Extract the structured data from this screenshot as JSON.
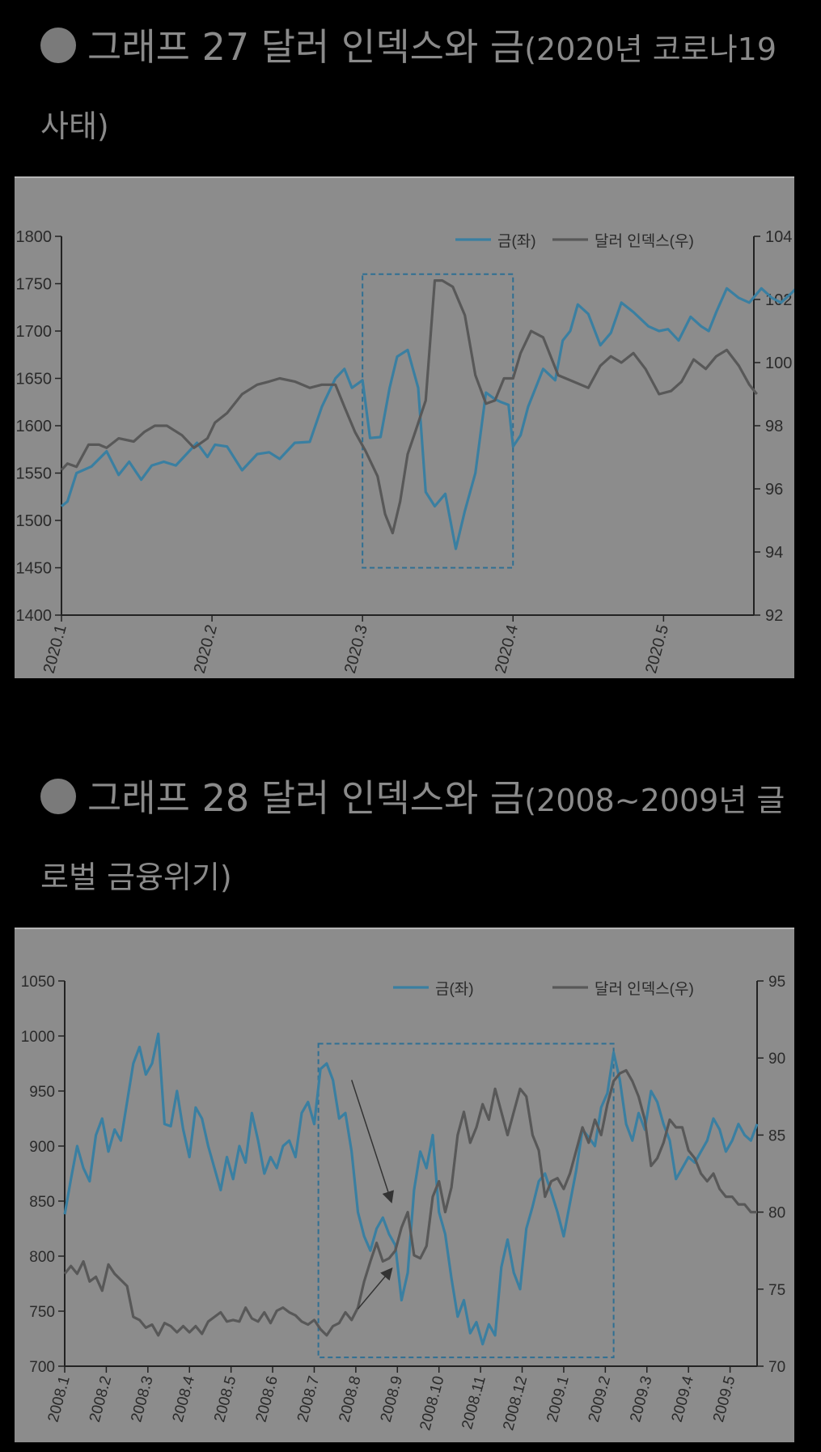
{
  "charts": [
    {
      "title_main": "그래프 27 달러 인덱스와 금",
      "title_sub": "(2020년 코로나19 사태)",
      "chart_data": {
        "type": "line",
        "categories": [
          "2020.1",
          "2020.2",
          "2020.3",
          "2020.4",
          "2020.5"
        ],
        "left_axis": {
          "ticks": [
            1400,
            1450,
            1500,
            1550,
            1600,
            1650,
            1700,
            1750,
            1800
          ],
          "ylim": [
            1400,
            1800
          ]
        },
        "right_axis": {
          "ticks": [
            92,
            94,
            96,
            98,
            100,
            102,
            104
          ],
          "ylim": [
            92,
            104
          ]
        },
        "legend": {
          "placement": "top-right"
        },
        "highlight_box": {
          "x": [
            2.0,
            3.0
          ],
          "y_left": [
            1450,
            1760
          ]
        },
        "series": [
          {
            "name": "금(좌)",
            "axis": "left",
            "color": "#3a7fa1",
            "x": [
              0,
              0.04,
              0.1,
              0.2,
              0.3,
              0.38,
              0.45,
              0.53,
              0.6,
              0.68,
              0.76,
              0.83,
              0.9,
              0.97,
              1.02,
              1.1,
              1.2,
              1.3,
              1.38,
              1.45,
              1.55,
              1.65,
              1.73,
              1.82,
              1.88,
              1.93,
              2.0,
              2.05,
              2.12,
              2.18,
              2.23,
              2.3,
              2.37,
              2.42,
              2.48,
              2.55,
              2.62,
              2.68,
              2.75,
              2.82,
              2.88,
              2.92,
              2.97,
              3.0,
              3.05,
              3.1,
              3.2,
              3.28,
              3.33,
              3.38,
              3.43,
              3.5,
              3.58,
              3.65,
              3.72,
              3.8,
              3.9,
              3.97,
              4.03,
              4.1,
              4.18,
              4.25,
              4.3,
              4.35,
              4.42,
              4.5,
              4.57,
              4.65,
              4.72,
              4.78,
              4.85,
              4.88
            ],
            "values": [
              1515,
              1520,
              1550,
              1557,
              1573,
              1548,
              1562,
              1543,
              1558,
              1562,
              1558,
              1570,
              1582,
              1567,
              1580,
              1578,
              1553,
              1570,
              1572,
              1565,
              1582,
              1583,
              1620,
              1650,
              1660,
              1640,
              1648,
              1587,
              1588,
              1640,
              1673,
              1680,
              1640,
              1530,
              1515,
              1528,
              1470,
              1510,
              1550,
              1635,
              1628,
              1625,
              1622,
              1578,
              1590,
              1620,
              1660,
              1648,
              1690,
              1700,
              1728,
              1718,
              1685,
              1698,
              1730,
              1720,
              1705,
              1700,
              1702,
              1690,
              1715,
              1705,
              1700,
              1720,
              1745,
              1735,
              1730,
              1745,
              1735,
              1730,
              1740,
              1745
            ]
          },
          {
            "name": "달러 인덱스(우)",
            "axis": "right",
            "color": "#585858",
            "x": [
              0,
              0.04,
              0.1,
              0.18,
              0.25,
              0.3,
              0.38,
              0.48,
              0.55,
              0.62,
              0.7,
              0.8,
              0.88,
              0.97,
              1.02,
              1.1,
              1.2,
              1.3,
              1.38,
              1.45,
              1.55,
              1.65,
              1.73,
              1.82,
              1.88,
              1.95,
              2.02,
              2.1,
              2.15,
              2.2,
              2.25,
              2.3,
              2.35,
              2.42,
              2.48,
              2.53,
              2.6,
              2.68,
              2.75,
              2.82,
              2.88,
              2.94,
              3.0,
              3.05,
              3.12,
              3.2,
              3.3,
              3.4,
              3.5,
              3.58,
              3.65,
              3.72,
              3.8,
              3.88,
              3.97,
              4.05,
              4.12,
              4.2,
              4.28,
              4.35,
              4.42,
              4.5,
              4.57,
              4.62
            ],
            "values": [
              96.6,
              96.8,
              96.7,
              97.4,
              97.4,
              97.3,
              97.6,
              97.5,
              97.8,
              98.0,
              98.0,
              97.7,
              97.3,
              97.6,
              98.1,
              98.4,
              99.0,
              99.3,
              99.4,
              99.5,
              99.4,
              99.2,
              99.3,
              99.3,
              98.6,
              97.8,
              97.2,
              96.4,
              95.2,
              94.6,
              95.6,
              97.1,
              97.8,
              98.8,
              102.6,
              102.6,
              102.4,
              101.5,
              99.6,
              98.7,
              98.8,
              99.5,
              99.5,
              100.3,
              101.0,
              100.8,
              99.6,
              99.4,
              99.2,
              99.9,
              100.2,
              100.0,
              100.3,
              99.8,
              99.0,
              99.1,
              99.4,
              100.1,
              99.8,
              100.2,
              100.4,
              99.9,
              99.3,
              99.0
            ]
          }
        ]
      }
    },
    {
      "title_main": "그래프 28 달러 인덱스와 금",
      "title_sub": "(2008~2009년 글로벌 금융위기)",
      "chart_data": {
        "type": "line",
        "categories": [
          "2008.1",
          "2008.2",
          "2008.3",
          "2008.4",
          "2008.5",
          "2008.6",
          "2008.7",
          "2008.8",
          "2008.9",
          "2008.10",
          "2008.11",
          "2008.12",
          "2009.1",
          "2009.2",
          "2009.3",
          "2009.4",
          "2009.5"
        ],
        "left_axis": {
          "ticks": [
            700,
            750,
            800,
            850,
            900,
            950,
            1000,
            1050
          ],
          "ylim": [
            700,
            1050
          ]
        },
        "right_axis": {
          "ticks": [
            70,
            75,
            80,
            85,
            90,
            95
          ],
          "ylim": [
            70,
            95
          ]
        },
        "legend": {
          "placement": "top-right"
        },
        "highlight_box": {
          "x": [
            6.1,
            13.2
          ],
          "y_left": [
            708,
            993
          ]
        },
        "series": [
          {
            "name": "금(좌)",
            "axis": "left",
            "color": "#3a7fa1",
            "x": [
              0,
              0.15,
              0.3,
              0.45,
              0.6,
              0.75,
              0.9,
              1.05,
              1.2,
              1.35,
              1.5,
              1.65,
              1.8,
              1.95,
              2.1,
              2.25,
              2.4,
              2.55,
              2.7,
              2.85,
              3.0,
              3.15,
              3.3,
              3.45,
              3.6,
              3.75,
              3.9,
              4.05,
              4.2,
              4.35,
              4.5,
              4.65,
              4.8,
              4.95,
              5.1,
              5.25,
              5.4,
              5.55,
              5.7,
              5.85,
              6.0,
              6.15,
              6.3,
              6.45,
              6.6,
              6.75,
              6.9,
              7.05,
              7.2,
              7.35,
              7.5,
              7.65,
              7.8,
              7.95,
              8.1,
              8.25,
              8.4,
              8.55,
              8.7,
              8.85,
              9.0,
              9.15,
              9.3,
              9.45,
              9.6,
              9.75,
              9.9,
              10.05,
              10.2,
              10.35,
              10.5,
              10.65,
              10.8,
              10.95,
              11.1,
              11.25,
              11.4,
              11.55,
              11.7,
              11.85,
              12.0,
              12.15,
              12.3,
              12.45,
              12.6,
              12.75,
              12.9,
              13.05,
              13.2,
              13.35,
              13.5,
              13.65,
              13.8,
              13.95,
              14.1,
              14.25,
              14.4,
              14.55,
              14.7,
              14.85,
              15.0,
              15.15,
              15.3,
              15.45,
              15.6,
              15.75,
              15.9,
              16.05,
              16.2,
              16.35,
              16.5,
              16.65
            ],
            "values": [
              838,
              870,
              900,
              880,
              868,
              910,
              925,
              895,
              915,
              905,
              940,
              975,
              990,
              965,
              975,
              1002,
              920,
              918,
              950,
              915,
              890,
              935,
              925,
              900,
              880,
              860,
              890,
              870,
              900,
              885,
              930,
              905,
              875,
              890,
              880,
              900,
              905,
              890,
              930,
              940,
              920,
              970,
              975,
              960,
              925,
              930,
              895,
              840,
              818,
              805,
              825,
              835,
              820,
              810,
              760,
              785,
              860,
              895,
              880,
              910,
              840,
              820,
              780,
              745,
              760,
              730,
              740,
              720,
              738,
              728,
              790,
              815,
              785,
              770,
              825,
              845,
              868,
              875,
              858,
              840,
              818,
              848,
              878,
              915,
              908,
              900,
              935,
              948,
              985,
              960,
              920,
              905,
              930,
              915,
              950,
              940,
              920,
              905,
              870,
              880,
              890,
              885,
              895,
              905,
              925,
              915,
              895,
              905,
              920,
              910,
              905,
              920
            ],
            "_note": ""
          },
          {
            "name": "달러 인덱스(우)",
            "axis": "right",
            "color": "#585858",
            "x": [
              0,
              0.15,
              0.3,
              0.45,
              0.6,
              0.75,
              0.9,
              1.05,
              1.2,
              1.35,
              1.5,
              1.65,
              1.8,
              1.95,
              2.1,
              2.25,
              2.4,
              2.55,
              2.7,
              2.85,
              3.0,
              3.15,
              3.3,
              3.45,
              3.6,
              3.75,
              3.9,
              4.05,
              4.2,
              4.35,
              4.5,
              4.65,
              4.8,
              4.95,
              5.1,
              5.25,
              5.4,
              5.55,
              5.7,
              5.85,
              6.0,
              6.15,
              6.3,
              6.45,
              6.6,
              6.75,
              6.9,
              7.05,
              7.2,
              7.35,
              7.5,
              7.65,
              7.8,
              7.95,
              8.1,
              8.25,
              8.4,
              8.55,
              8.7,
              8.85,
              9.0,
              9.15,
              9.3,
              9.45,
              9.6,
              9.75,
              9.9,
              10.05,
              10.2,
              10.35,
              10.5,
              10.65,
              10.8,
              10.95,
              11.1,
              11.25,
              11.4,
              11.55,
              11.7,
              11.85,
              12.0,
              12.15,
              12.3,
              12.45,
              12.6,
              12.75,
              12.9,
              13.05,
              13.2,
              13.35,
              13.5,
              13.65,
              13.8,
              13.95,
              14.1,
              14.25,
              14.4,
              14.55,
              14.7,
              14.85,
              15.0,
              15.15,
              15.3,
              15.45,
              15.6,
              15.75,
              15.9,
              16.05,
              16.2,
              16.35,
              16.5,
              16.65
            ],
            "values": [
              76.0,
              76.5,
              76.0,
              76.8,
              75.5,
              75.8,
              74.9,
              76.6,
              76.0,
              75.6,
              75.2,
              73.2,
              73.0,
              72.5,
              72.7,
              72.0,
              72.8,
              72.6,
              72.2,
              72.6,
              72.2,
              72.6,
              72.1,
              72.9,
              73.2,
              73.5,
              72.9,
              73.0,
              72.9,
              73.8,
              73.1,
              72.9,
              73.5,
              72.8,
              73.6,
              73.8,
              73.5,
              73.3,
              72.9,
              72.7,
              73.0,
              72.4,
              72.0,
              72.6,
              72.8,
              73.5,
              73.0,
              73.8,
              75.5,
              76.8,
              78.0,
              76.8,
              77.0,
              77.5,
              79.0,
              80.0,
              77.2,
              77.0,
              77.8,
              81.0,
              82.0,
              80.0,
              81.6,
              85.0,
              86.5,
              84.5,
              85.5,
              87.0,
              86.0,
              88.0,
              86.5,
              85.0,
              86.5,
              88.0,
              87.5,
              85.0,
              84.0,
              81.0,
              82.0,
              82.2,
              81.5,
              82.5,
              84.0,
              85.5,
              84.5,
              86.0,
              85.0,
              87.0,
              88.5,
              89.0,
              89.2,
              88.5,
              87.5,
              86.0,
              83.0,
              83.5,
              84.5,
              86.0,
              85.5,
              85.5,
              84.0,
              83.5,
              82.5,
              82.0,
              82.5,
              81.5,
              81.0,
              81.0,
              80.5,
              80.5,
              80.0,
              80.0
            ]
          }
        ],
        "arrows": [
          {
            "from": [
              6.9,
              960
            ],
            "to": [
              7.85,
              850
            ]
          },
          {
            "from": [
              7.05,
              752
            ],
            "to": [
              7.85,
              788
            ]
          }
        ]
      }
    }
  ]
}
